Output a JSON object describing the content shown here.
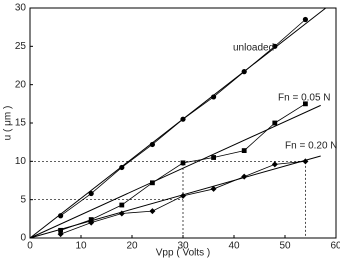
{
  "chart_data": {
    "type": "line",
    "x_label": "Vpp ( Volts )",
    "y_label": "u ( μm )",
    "x": [
      6,
      12,
      18,
      24,
      30,
      36,
      42,
      48,
      54
    ],
    "series": [
      {
        "name": "unloaded",
        "color": "#000000",
        "marker": "circle",
        "values": [
          2.9,
          5.8,
          9.2,
          12.2,
          15.5,
          18.4,
          21.7,
          25.0,
          28.5
        ]
      },
      {
        "name": "Fn = 0.05 N",
        "color": "#000000",
        "marker": "square",
        "values": [
          1.0,
          2.4,
          4.3,
          7.2,
          9.8,
          10.5,
          11.4,
          15.0,
          17.5
        ]
      },
      {
        "name": "Fn = 0.20 N",
        "color": "#000000",
        "marker": "diamond",
        "values": [
          0.5,
          2.0,
          3.2,
          3.5,
          5.5,
          6.4,
          8.0,
          9.6,
          10.0
        ]
      }
    ],
    "fit_lines": [
      {
        "x": [
          0,
          58
        ],
        "y": [
          0,
          30
        ]
      },
      {
        "x": [
          0,
          57
        ],
        "y": [
          0,
          17.3
        ]
      },
      {
        "x": [
          0,
          57
        ],
        "y": [
          0,
          10.7
        ]
      }
    ],
    "reference_lines": [
      {
        "x": [
          0,
          54,
          54
        ],
        "y": [
          10,
          10,
          0
        ]
      },
      {
        "x": [
          0,
          30
        ],
        "y": [
          5,
          5
        ]
      },
      {
        "x": [
          30,
          30
        ],
        "y": [
          0,
          10
        ]
      }
    ],
    "xlim": [
      0,
      60
    ],
    "xticks": [
      0,
      10,
      20,
      30,
      40,
      50,
      60
    ],
    "ylim": [
      0,
      30
    ],
    "yticks": [
      0,
      5,
      10,
      15,
      20,
      25,
      30
    ]
  }
}
